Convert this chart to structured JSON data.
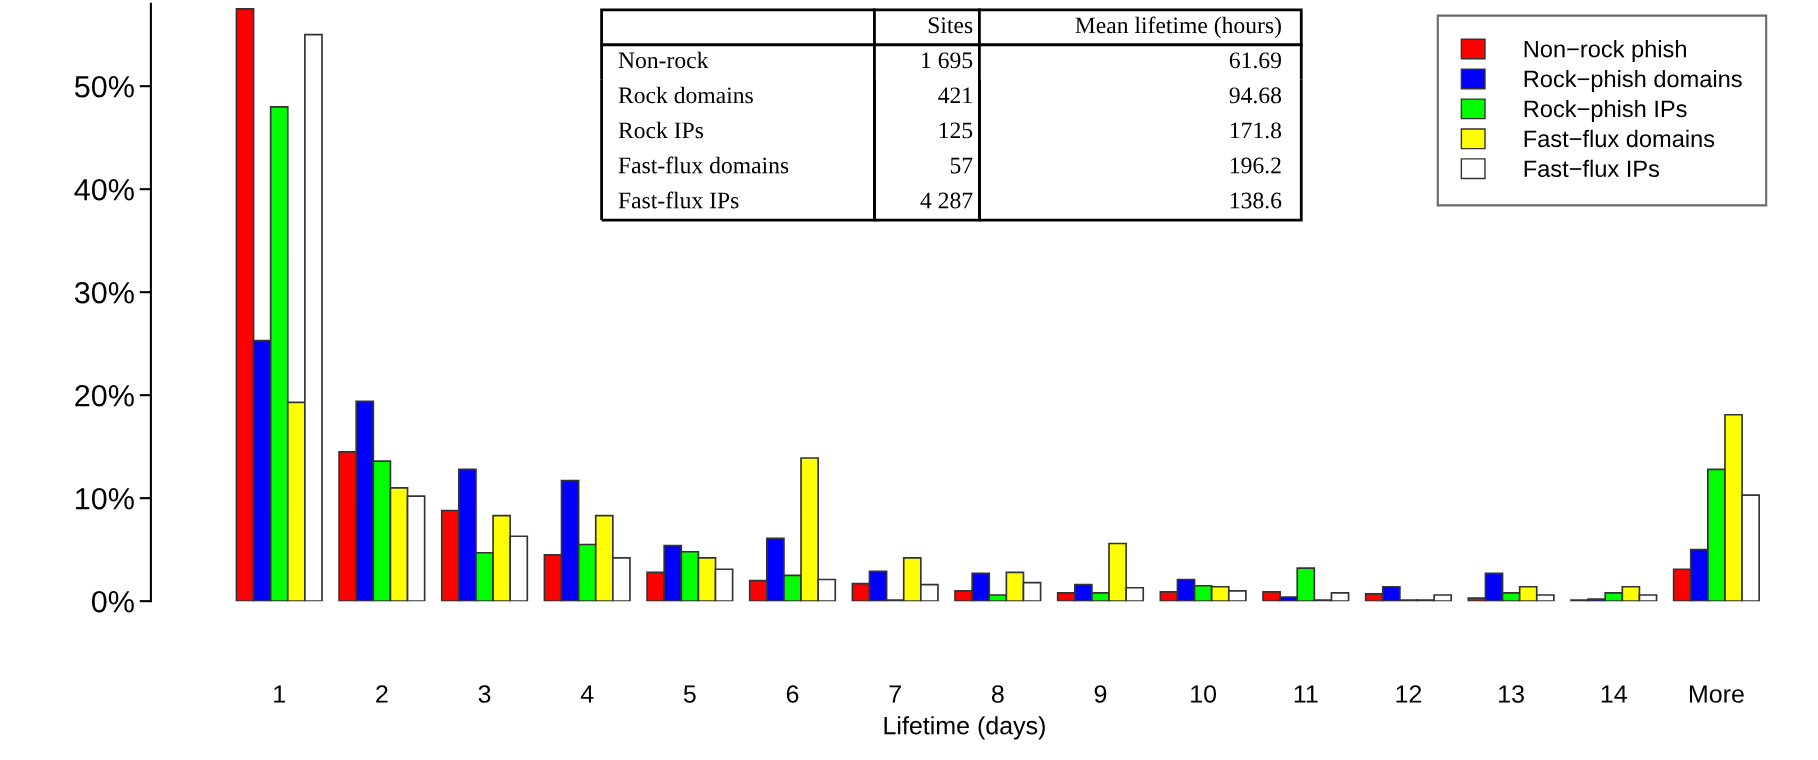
{
  "chart_data": {
    "type": "bar",
    "xlabel": "Lifetime (days)",
    "categories": [
      "1",
      "2",
      "3",
      "4",
      "5",
      "6",
      "7",
      "8",
      "9",
      "10",
      "11",
      "12",
      "13",
      "14",
      "More"
    ],
    "series": [
      {
        "name": "Non−rock phish",
        "color": "#ff0000",
        "values": [
          57.5,
          14.5,
          8.8,
          4.5,
          2.8,
          2.0,
          1.7,
          1.0,
          0.8,
          0.9,
          0.9,
          0.7,
          0.3,
          0.1,
          3.1
        ]
      },
      {
        "name": "Rock−phish domains",
        "color": "#0000ff",
        "values": [
          25.3,
          19.4,
          12.8,
          11.7,
          5.4,
          6.1,
          2.9,
          2.7,
          1.6,
          2.1,
          0.4,
          1.4,
          2.7,
          0.2,
          5.0
        ]
      },
      {
        "name": "Rock−phish IPs",
        "color": "#00ff00",
        "values": [
          48.0,
          13.6,
          4.7,
          5.5,
          4.8,
          2.5,
          0.1,
          0.6,
          0.8,
          1.5,
          3.2,
          0.1,
          0.8,
          0.8,
          12.8
        ]
      },
      {
        "name": "Fast−flux domains",
        "color": "#ffff00",
        "values": [
          19.3,
          11.0,
          8.3,
          8.3,
          4.2,
          13.9,
          4.2,
          2.8,
          5.6,
          1.4,
          0.1,
          0.1,
          1.4,
          1.4,
          18.1
        ]
      },
      {
        "name": "Fast−flux IPs",
        "color": "#ffffff",
        "values": [
          55.0,
          10.2,
          6.3,
          4.2,
          3.1,
          2.1,
          1.6,
          1.8,
          1.3,
          1.0,
          0.8,
          0.6,
          0.6,
          0.6,
          10.3
        ]
      }
    ],
    "ylim": [
      0,
      58
    ],
    "yticks": [
      {
        "value": 0,
        "label": "0%"
      },
      {
        "value": 10,
        "label": "10%"
      },
      {
        "value": 20,
        "label": "20%"
      },
      {
        "value": 30,
        "label": "30%"
      },
      {
        "value": 40,
        "label": "40%"
      },
      {
        "value": 50,
        "label": "50%"
      }
    ],
    "grid": false,
    "legend": "top right",
    "annotations": [
      "Sites",
      "Mean lifetime (hours)",
      "Non-rock",
      "1 695",
      "61.69",
      "Rock domains",
      "421",
      "94.68",
      "Rock IPs",
      "125",
      "171.8",
      "Fast-flux domains",
      "57",
      "196.2",
      "Fast-flux IPs",
      "4 287",
      "138.6"
    ]
  }
}
